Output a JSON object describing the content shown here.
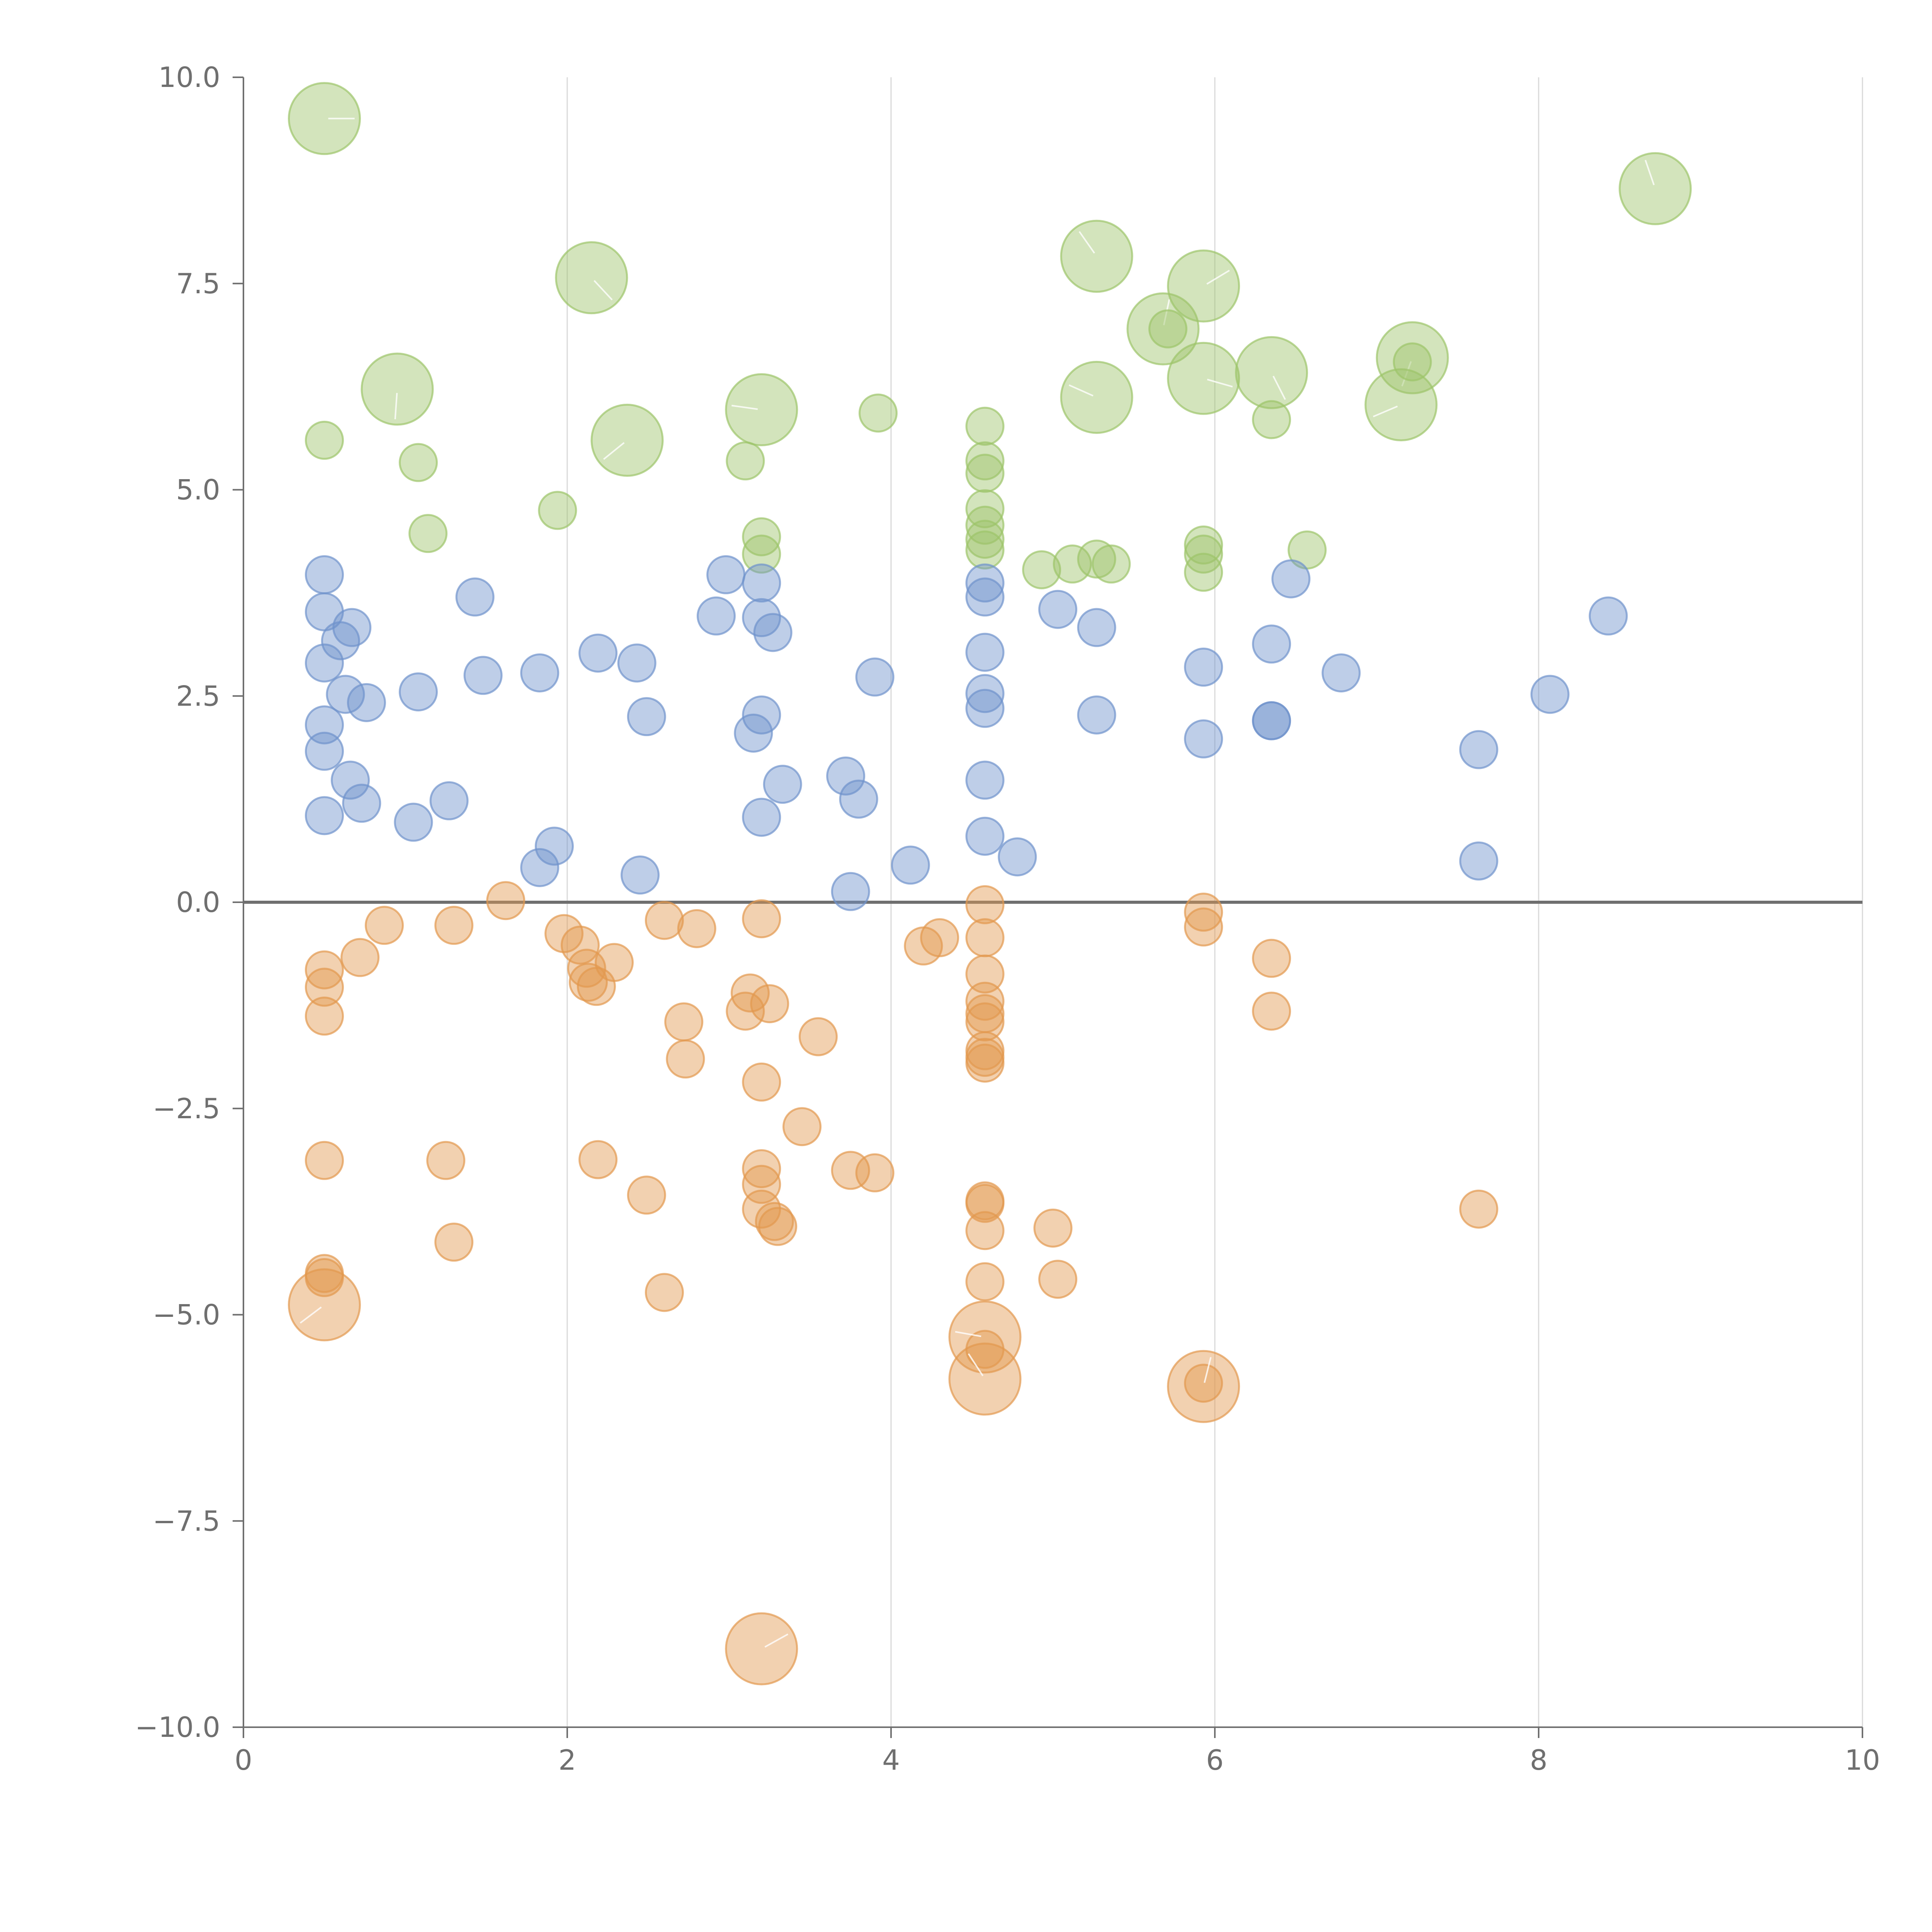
{
  "chart_data": {
    "type": "scatter",
    "title": "",
    "xlabel": "",
    "ylabel": "",
    "xlim": [
      0,
      10
    ],
    "ylim": [
      -10,
      10
    ],
    "grid": "vertical",
    "x_ticks": [
      0,
      2,
      4,
      6,
      8,
      10
    ],
    "x_tick_labels": [
      "0",
      "2",
      "4",
      "6",
      "8",
      "10"
    ],
    "y_ticks": [
      10,
      7.5,
      5,
      2.5,
      0,
      -2.5,
      -5,
      -7.5,
      -10
    ],
    "y_tick_labels": [
      "10.0",
      "7.5",
      "5.0",
      "2.5",
      "0.0",
      "−2.5",
      "−5.0",
      "−7.5",
      "−10.0"
    ],
    "reference_line_y": 0,
    "colors": {
      "green": "#9dc46a",
      "blue": "#6f93cc",
      "orange": "#e3984f",
      "axis": "#6f6f6f",
      "grid": "#d9d9d9"
    },
    "series": [
      {
        "name": "green",
        "color_key": "green",
        "points": [
          {
            "x": 0.5,
            "y": 9.5,
            "s": 3
          },
          {
            "x": 2.15,
            "y": 7.57,
            "s": 3
          },
          {
            "x": 0.95,
            "y": 6.22,
            "s": 3
          },
          {
            "x": 2.37,
            "y": 5.6,
            "s": 3
          },
          {
            "x": 3.2,
            "y": 5.97,
            "s": 3
          },
          {
            "x": 5.27,
            "y": 7.83,
            "s": 3
          },
          {
            "x": 5.68,
            "y": 6.95,
            "s": 3
          },
          {
            "x": 5.93,
            "y": 7.47,
            "s": 3
          },
          {
            "x": 5.93,
            "y": 6.35,
            "s": 3
          },
          {
            "x": 6.35,
            "y": 6.42,
            "s": 3
          },
          {
            "x": 7.22,
            "y": 6.6,
            "s": 3
          },
          {
            "x": 7.15,
            "y": 6.03,
            "s": 3
          },
          {
            "x": 5.27,
            "y": 6.12,
            "s": 3
          },
          {
            "x": 8.72,
            "y": 8.65,
            "s": 3
          },
          {
            "x": 0.5,
            "y": 5.6,
            "s": 1
          },
          {
            "x": 1.08,
            "y": 5.33,
            "s": 1
          },
          {
            "x": 1.14,
            "y": 4.47,
            "s": 1
          },
          {
            "x": 1.94,
            "y": 4.75,
            "s": 1
          },
          {
            "x": 3.1,
            "y": 5.35,
            "s": 1
          },
          {
            "x": 3.92,
            "y": 5.93,
            "s": 1
          },
          {
            "x": 3.2,
            "y": 4.43,
            "s": 1
          },
          {
            "x": 3.2,
            "y": 4.22,
            "s": 1
          },
          {
            "x": 4.58,
            "y": 5.77,
            "s": 1
          },
          {
            "x": 4.58,
            "y": 5.35,
            "s": 1
          },
          {
            "x": 4.58,
            "y": 5.2,
            "s": 1
          },
          {
            "x": 4.58,
            "y": 4.77,
            "s": 1
          },
          {
            "x": 4.58,
            "y": 4.57,
            "s": 1
          },
          {
            "x": 4.58,
            "y": 4.4,
            "s": 1
          },
          {
            "x": 4.58,
            "y": 4.27,
            "s": 1
          },
          {
            "x": 4.93,
            "y": 4.03,
            "s": 1
          },
          {
            "x": 5.12,
            "y": 4.1,
            "s": 1
          },
          {
            "x": 5.27,
            "y": 4.16,
            "s": 1
          },
          {
            "x": 5.36,
            "y": 4.1,
            "s": 1
          },
          {
            "x": 5.93,
            "y": 4.33,
            "s": 1
          },
          {
            "x": 5.93,
            "y": 4.22,
            "s": 1
          },
          {
            "x": 5.93,
            "y": 4.0,
            "s": 1
          },
          {
            "x": 6.35,
            "y": 5.85,
            "s": 1
          },
          {
            "x": 6.57,
            "y": 4.27,
            "s": 1
          },
          {
            "x": 5.71,
            "y": 6.95,
            "s": 1
          },
          {
            "x": 7.22,
            "y": 6.55,
            "s": 1
          }
        ]
      },
      {
        "name": "blue",
        "color_key": "blue",
        "points": [
          {
            "x": 0.5,
            "y": 3.97,
            "s": 1
          },
          {
            "x": 0.5,
            "y": 3.52,
            "s": 1
          },
          {
            "x": 0.5,
            "y": 2.9,
            "s": 1
          },
          {
            "x": 0.5,
            "y": 2.15,
            "s": 1
          },
          {
            "x": 0.5,
            "y": 1.83,
            "s": 1
          },
          {
            "x": 0.5,
            "y": 1.05,
            "s": 1
          },
          {
            "x": 0.6,
            "y": 3.17,
            "s": 1
          },
          {
            "x": 0.67,
            "y": 3.33,
            "s": 1
          },
          {
            "x": 0.63,
            "y": 2.52,
            "s": 1
          },
          {
            "x": 0.76,
            "y": 2.42,
            "s": 1
          },
          {
            "x": 0.66,
            "y": 1.48,
            "s": 1
          },
          {
            "x": 0.73,
            "y": 1.2,
            "s": 1
          },
          {
            "x": 1.05,
            "y": 0.97,
            "s": 1
          },
          {
            "x": 1.08,
            "y": 2.55,
            "s": 1
          },
          {
            "x": 1.27,
            "y": 1.23,
            "s": 1
          },
          {
            "x": 1.43,
            "y": 3.7,
            "s": 1
          },
          {
            "x": 1.48,
            "y": 2.75,
            "s": 1
          },
          {
            "x": 1.83,
            "y": 2.78,
            "s": 1
          },
          {
            "x": 1.83,
            "y": 0.42,
            "s": 1
          },
          {
            "x": 1.92,
            "y": 0.68,
            "s": 1
          },
          {
            "x": 2.19,
            "y": 3.02,
            "s": 1
          },
          {
            "x": 2.43,
            "y": 2.9,
            "s": 1
          },
          {
            "x": 2.49,
            "y": 2.25,
            "s": 1
          },
          {
            "x": 2.45,
            "y": 0.33,
            "s": 1
          },
          {
            "x": 2.92,
            "y": 3.47,
            "s": 1
          },
          {
            "x": 2.98,
            "y": 3.97,
            "s": 1
          },
          {
            "x": 3.2,
            "y": 3.87,
            "s": 1
          },
          {
            "x": 3.2,
            "y": 3.45,
            "s": 1
          },
          {
            "x": 3.27,
            "y": 3.27,
            "s": 1
          },
          {
            "x": 3.2,
            "y": 2.27,
            "s": 1
          },
          {
            "x": 3.15,
            "y": 2.05,
            "s": 1
          },
          {
            "x": 3.33,
            "y": 1.43,
            "s": 1
          },
          {
            "x": 3.2,
            "y": 1.03,
            "s": 1
          },
          {
            "x": 3.72,
            "y": 1.53,
            "s": 1
          },
          {
            "x": 3.8,
            "y": 1.25,
            "s": 1
          },
          {
            "x": 3.75,
            "y": 0.13,
            "s": 1
          },
          {
            "x": 3.9,
            "y": 2.73,
            "s": 1
          },
          {
            "x": 4.12,
            "y": 0.45,
            "s": 1
          },
          {
            "x": 4.58,
            "y": 3.87,
            "s": 1
          },
          {
            "x": 4.58,
            "y": 3.7,
            "s": 1
          },
          {
            "x": 4.58,
            "y": 3.03,
            "s": 1
          },
          {
            "x": 4.58,
            "y": 2.53,
            "s": 1
          },
          {
            "x": 4.58,
            "y": 2.35,
            "s": 1
          },
          {
            "x": 4.58,
            "y": 1.48,
            "s": 1
          },
          {
            "x": 4.58,
            "y": 0.8,
            "s": 1
          },
          {
            "x": 4.78,
            "y": 0.55,
            "s": 1
          },
          {
            "x": 5.03,
            "y": 3.55,
            "s": 1
          },
          {
            "x": 5.27,
            "y": 3.33,
            "s": 1
          },
          {
            "x": 5.27,
            "y": 2.27,
            "s": 1
          },
          {
            "x": 5.93,
            "y": 2.85,
            "s": 1
          },
          {
            "x": 5.93,
            "y": 1.98,
            "s": 1
          },
          {
            "x": 6.35,
            "y": 3.13,
            "s": 1
          },
          {
            "x": 6.35,
            "y": 2.2,
            "s": 1
          },
          {
            "x": 6.35,
            "y": 2.2,
            "s": 1
          },
          {
            "x": 6.47,
            "y": 3.92,
            "s": 1
          },
          {
            "x": 6.78,
            "y": 2.78,
            "s": 1
          },
          {
            "x": 7.63,
            "y": 1.85,
            "s": 1
          },
          {
            "x": 7.63,
            "y": 0.5,
            "s": 1
          },
          {
            "x": 8.07,
            "y": 2.52,
            "s": 1
          },
          {
            "x": 8.43,
            "y": 3.47,
            "s": 1
          }
        ]
      },
      {
        "name": "orange",
        "color_key": "orange",
        "points": [
          {
            "x": 0.5,
            "y": -0.82,
            "s": 1
          },
          {
            "x": 0.5,
            "y": -1.03,
            "s": 1
          },
          {
            "x": 0.5,
            "y": -1.38,
            "s": 1
          },
          {
            "x": 0.72,
            "y": -0.67,
            "s": 1
          },
          {
            "x": 0.87,
            "y": -0.28,
            "s": 1
          },
          {
            "x": 1.3,
            "y": -0.28,
            "s": 1
          },
          {
            "x": 1.62,
            "y": 0.02,
            "s": 1
          },
          {
            "x": 1.98,
            "y": -0.38,
            "s": 1
          },
          {
            "x": 2.08,
            "y": -0.52,
            "s": 1
          },
          {
            "x": 2.12,
            "y": -0.8,
            "s": 1
          },
          {
            "x": 2.13,
            "y": -0.97,
            "s": 1
          },
          {
            "x": 2.18,
            "y": -1.02,
            "s": 1
          },
          {
            "x": 2.29,
            "y": -0.73,
            "s": 1
          },
          {
            "x": 2.6,
            "y": -0.22,
            "s": 1
          },
          {
            "x": 2.8,
            "y": -0.32,
            "s": 1
          },
          {
            "x": 2.72,
            "y": -1.45,
            "s": 1
          },
          {
            "x": 2.73,
            "y": -1.9,
            "s": 1
          },
          {
            "x": 3.2,
            "y": -0.2,
            "s": 1
          },
          {
            "x": 3.13,
            "y": -1.1,
            "s": 1
          },
          {
            "x": 3.1,
            "y": -1.32,
            "s": 1
          },
          {
            "x": 3.25,
            "y": -1.23,
            "s": 1
          },
          {
            "x": 3.2,
            "y": -2.18,
            "s": 1
          },
          {
            "x": 3.55,
            "y": -1.63,
            "s": 1
          },
          {
            "x": 3.45,
            "y": -2.72,
            "s": 1
          },
          {
            "x": 4.2,
            "y": -0.53,
            "s": 1
          },
          {
            "x": 4.3,
            "y": -0.43,
            "s": 1
          },
          {
            "x": 4.58,
            "y": -0.03,
            "s": 1
          },
          {
            "x": 4.58,
            "y": -0.43,
            "s": 1
          },
          {
            "x": 4.58,
            "y": -0.87,
            "s": 1
          },
          {
            "x": 4.58,
            "y": -1.2,
            "s": 1
          },
          {
            "x": 4.58,
            "y": -1.35,
            "s": 1
          },
          {
            "x": 4.58,
            "y": -1.45,
            "s": 1
          },
          {
            "x": 4.58,
            "y": -1.8,
            "s": 1
          },
          {
            "x": 4.58,
            "y": -1.88,
            "s": 1
          },
          {
            "x": 4.58,
            "y": -1.95,
            "s": 1
          },
          {
            "x": 5.93,
            "y": -0.12,
            "s": 1
          },
          {
            "x": 5.93,
            "y": -0.3,
            "s": 1
          },
          {
            "x": 6.35,
            "y": -0.68,
            "s": 1
          },
          {
            "x": 6.35,
            "y": -1.32,
            "s": 1
          },
          {
            "x": 0.5,
            "y": -3.13,
            "s": 1
          },
          {
            "x": 1.25,
            "y": -3.13,
            "s": 1
          },
          {
            "x": 1.3,
            "y": -4.12,
            "s": 1
          },
          {
            "x": 0.5,
            "y": -4.5,
            "s": 1
          },
          {
            "x": 0.5,
            "y": -4.55,
            "s": 1
          },
          {
            "x": 2.19,
            "y": -3.12,
            "s": 1
          },
          {
            "x": 2.49,
            "y": -3.55,
            "s": 1
          },
          {
            "x": 2.6,
            "y": -4.73,
            "s": 1
          },
          {
            "x": 3.2,
            "y": -3.23,
            "s": 1
          },
          {
            "x": 3.2,
            "y": -3.42,
            "s": 1
          },
          {
            "x": 3.2,
            "y": -3.72,
            "s": 1
          },
          {
            "x": 3.28,
            "y": -3.87,
            "s": 1
          },
          {
            "x": 3.3,
            "y": -3.93,
            "s": 1
          },
          {
            "x": 3.75,
            "y": -3.25,
            "s": 1
          },
          {
            "x": 3.9,
            "y": -3.28,
            "s": 1
          },
          {
            "x": 4.58,
            "y": -3.62,
            "s": 1
          },
          {
            "x": 4.58,
            "y": -3.65,
            "s": 1
          },
          {
            "x": 4.58,
            "y": -3.98,
            "s": 1
          },
          {
            "x": 4.58,
            "y": -4.6,
            "s": 1
          },
          {
            "x": 5.0,
            "y": -3.95,
            "s": 1
          },
          {
            "x": 5.03,
            "y": -4.57,
            "s": 1
          },
          {
            "x": 4.58,
            "y": -5.42,
            "s": 1
          },
          {
            "x": 5.93,
            "y": -5.83,
            "s": 1
          },
          {
            "x": 7.63,
            "y": -3.72,
            "s": 1
          },
          {
            "x": 0.5,
            "y": -4.88,
            "s": 3
          },
          {
            "x": 4.58,
            "y": -5.27,
            "s": 3
          },
          {
            "x": 4.58,
            "y": -5.78,
            "s": 3
          },
          {
            "x": 5.93,
            "y": -5.87,
            "s": 3
          },
          {
            "x": 3.2,
            "y": -9.05,
            "s": 3
          }
        ]
      }
    ]
  }
}
